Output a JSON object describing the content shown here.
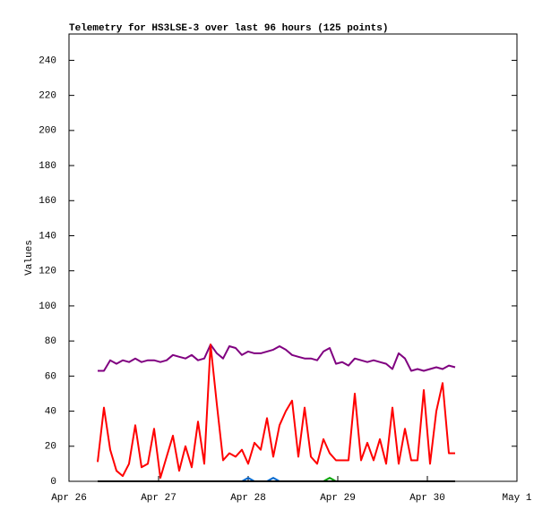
{
  "chart_data": {
    "type": "line",
    "title": "Telemetry for HS3LSE-3 over last 96 hours (125 points)",
    "ylabel": "Values",
    "x": [
      26.32,
      26.39,
      26.46,
      26.53,
      26.6,
      26.67,
      26.74,
      26.81,
      26.88,
      26.95,
      27.02,
      27.09,
      27.16,
      27.23,
      27.3,
      27.37,
      27.44,
      27.51,
      27.58,
      27.65,
      27.72,
      27.79,
      27.86,
      27.93,
      28.0,
      28.07,
      28.14,
      28.21,
      28.28,
      28.35,
      28.42,
      28.49,
      28.56,
      28.63,
      28.7,
      28.77,
      28.84,
      28.91,
      28.98,
      29.05,
      29.12,
      29.19,
      29.26,
      29.33,
      29.4,
      29.47,
      29.54,
      29.61,
      29.68,
      29.75,
      29.82,
      29.89,
      29.96,
      30.03,
      30.1,
      30.17,
      30.24,
      30.31
    ],
    "series": [
      {
        "color": "#800080",
        "values": [
          63,
          63,
          69,
          67,
          69,
          68,
          70,
          68,
          69,
          69,
          68,
          69,
          72,
          71,
          70,
          72,
          69,
          70,
          78,
          73,
          70,
          77,
          76,
          72,
          74,
          73,
          73,
          74,
          75,
          77,
          75,
          72,
          71,
          70,
          70,
          69,
          74,
          76,
          67,
          68,
          66,
          70,
          69,
          68,
          69,
          68,
          67,
          64,
          73,
          70,
          63,
          64,
          63,
          64,
          65,
          64,
          66,
          65
        ]
      },
      {
        "color": "#ff0000",
        "values": [
          11,
          42,
          18,
          6,
          3,
          10,
          32,
          8,
          10,
          30,
          2,
          14,
          26,
          6,
          20,
          8,
          34,
          10,
          78,
          44,
          12,
          16,
          14,
          18,
          10,
          22,
          18,
          36,
          14,
          32,
          40,
          46,
          14,
          42,
          14,
          10,
          24,
          16,
          12,
          12,
          12,
          50,
          12,
          22,
          12,
          24,
          10,
          42,
          10,
          30,
          12,
          12,
          52,
          10,
          40,
          56,
          16,
          16
        ]
      },
      {
        "color": "#0066cc",
        "values": [
          0,
          0,
          0,
          0,
          0,
          0,
          0,
          0,
          0,
          0,
          0,
          0,
          0,
          0,
          0,
          0,
          0,
          0,
          0,
          0,
          0,
          0,
          0,
          0,
          2,
          0,
          0,
          0,
          2,
          0,
          0,
          0,
          0,
          0,
          0,
          0,
          0,
          0,
          0,
          0,
          0,
          0,
          0,
          0,
          0,
          0,
          0,
          0,
          0,
          0,
          0,
          0,
          0,
          0,
          0,
          0,
          0,
          0
        ]
      },
      {
        "color": "#00a000",
        "values": [
          0,
          0,
          0,
          0,
          0,
          0,
          0,
          0,
          0,
          0,
          0,
          0,
          0,
          0,
          0,
          0,
          0,
          0,
          0,
          0,
          0,
          0,
          0,
          0,
          0,
          0,
          0,
          0,
          0,
          0,
          0,
          0,
          0,
          0,
          0,
          0,
          0,
          2,
          0,
          0,
          0,
          0,
          0,
          0,
          0,
          0,
          0,
          0,
          0,
          0,
          0,
          0,
          0,
          0,
          0,
          0,
          0,
          0
        ]
      },
      {
        "color": "#000000",
        "values": [
          0,
          0,
          0,
          0,
          0,
          0,
          0,
          0,
          0,
          0,
          0,
          0,
          0,
          0,
          0,
          0,
          0,
          0,
          0,
          0,
          0,
          0,
          0,
          0,
          0,
          0,
          0,
          0,
          0,
          0,
          0,
          0,
          0,
          0,
          0,
          0,
          0,
          0,
          0,
          0,
          0,
          0,
          0,
          0,
          0,
          0,
          0,
          0,
          0,
          0,
          0,
          0,
          0,
          0,
          0,
          0,
          0,
          0
        ]
      }
    ],
    "xlim": [
      26,
      31
    ],
    "xticks": [
      {
        "value": 26,
        "label": "Apr 26"
      },
      {
        "value": 27,
        "label": "Apr 27"
      },
      {
        "value": 28,
        "label": "Apr 28"
      },
      {
        "value": 29,
        "label": "Apr 29"
      },
      {
        "value": 30,
        "label": "Apr 30"
      },
      {
        "value": 31,
        "label": "May 1"
      }
    ],
    "ylim": [
      0,
      255
    ],
    "yticks": [
      0,
      20,
      40,
      60,
      80,
      100,
      120,
      140,
      160,
      180,
      200,
      220,
      240
    ]
  }
}
